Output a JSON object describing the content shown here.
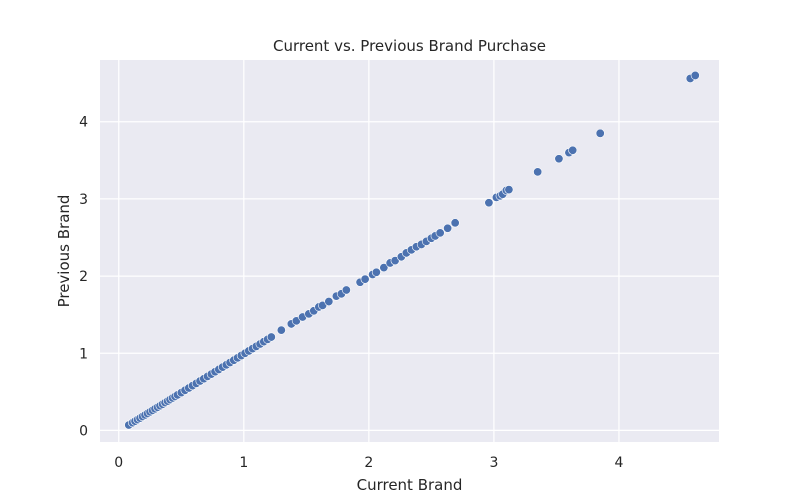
{
  "chart_data": {
    "type": "scatter",
    "title": "Current vs. Previous Brand Purchase",
    "xlabel": "Current Brand",
    "ylabel": "Previous Brand",
    "xlim": [
      -0.15,
      4.8
    ],
    "ylim": [
      -0.15,
      4.8
    ],
    "xticks": [
      0,
      1,
      2,
      3,
      4
    ],
    "yticks": [
      0,
      1,
      2,
      3,
      4
    ],
    "grid": true,
    "background_color": "#eaeaf2",
    "grid_color": "#ffffff",
    "point_color": "#4c72b0",
    "point_edge_color": "#ffffff",
    "points": [
      [
        0.08,
        0.07
      ],
      [
        0.11,
        0.1
      ],
      [
        0.13,
        0.12
      ],
      [
        0.15,
        0.14
      ],
      [
        0.17,
        0.16
      ],
      [
        0.19,
        0.18
      ],
      [
        0.21,
        0.2
      ],
      [
        0.23,
        0.22
      ],
      [
        0.25,
        0.24
      ],
      [
        0.27,
        0.26
      ],
      [
        0.29,
        0.28
      ],
      [
        0.31,
        0.3
      ],
      [
        0.33,
        0.32
      ],
      [
        0.35,
        0.34
      ],
      [
        0.37,
        0.36
      ],
      [
        0.39,
        0.38
      ],
      [
        0.41,
        0.4
      ],
      [
        0.43,
        0.42
      ],
      [
        0.45,
        0.44
      ],
      [
        0.47,
        0.46
      ],
      [
        0.5,
        0.49
      ],
      [
        0.53,
        0.52
      ],
      [
        0.56,
        0.55
      ],
      [
        0.59,
        0.58
      ],
      [
        0.62,
        0.61
      ],
      [
        0.65,
        0.64
      ],
      [
        0.68,
        0.67
      ],
      [
        0.71,
        0.7
      ],
      [
        0.74,
        0.73
      ],
      [
        0.77,
        0.76
      ],
      [
        0.8,
        0.79
      ],
      [
        0.83,
        0.82
      ],
      [
        0.86,
        0.85
      ],
      [
        0.89,
        0.88
      ],
      [
        0.92,
        0.91
      ],
      [
        0.95,
        0.94
      ],
      [
        0.98,
        0.97
      ],
      [
        1.01,
        1.0
      ],
      [
        1.04,
        1.03
      ],
      [
        1.07,
        1.06
      ],
      [
        1.1,
        1.09
      ],
      [
        1.13,
        1.12
      ],
      [
        1.16,
        1.15
      ],
      [
        1.19,
        1.18
      ],
      [
        1.22,
        1.21
      ],
      [
        1.3,
        1.3
      ],
      [
        1.38,
        1.38
      ],
      [
        1.42,
        1.42
      ],
      [
        1.47,
        1.47
      ],
      [
        1.52,
        1.51
      ],
      [
        1.56,
        1.55
      ],
      [
        1.6,
        1.6
      ],
      [
        1.63,
        1.62
      ],
      [
        1.68,
        1.67
      ],
      [
        1.74,
        1.74
      ],
      [
        1.78,
        1.77
      ],
      [
        1.82,
        1.82
      ],
      [
        1.93,
        1.92
      ],
      [
        1.97,
        1.96
      ],
      [
        2.03,
        2.02
      ],
      [
        2.06,
        2.05
      ],
      [
        2.12,
        2.11
      ],
      [
        2.17,
        2.17
      ],
      [
        2.21,
        2.2
      ],
      [
        2.26,
        2.25
      ],
      [
        2.3,
        2.3
      ],
      [
        2.34,
        2.34
      ],
      [
        2.38,
        2.38
      ],
      [
        2.42,
        2.41
      ],
      [
        2.46,
        2.45
      ],
      [
        2.5,
        2.49
      ],
      [
        2.53,
        2.52
      ],
      [
        2.57,
        2.56
      ],
      [
        2.63,
        2.62
      ],
      [
        2.69,
        2.69
      ],
      [
        2.96,
        2.95
      ],
      [
        3.02,
        3.02
      ],
      [
        3.05,
        3.04
      ],
      [
        3.07,
        3.06
      ],
      [
        3.1,
        3.11
      ],
      [
        3.12,
        3.12
      ],
      [
        3.35,
        3.35
      ],
      [
        3.52,
        3.52
      ],
      [
        3.6,
        3.6
      ],
      [
        3.63,
        3.63
      ],
      [
        3.85,
        3.85
      ],
      [
        4.57,
        4.56
      ],
      [
        4.61,
        4.6
      ]
    ]
  }
}
